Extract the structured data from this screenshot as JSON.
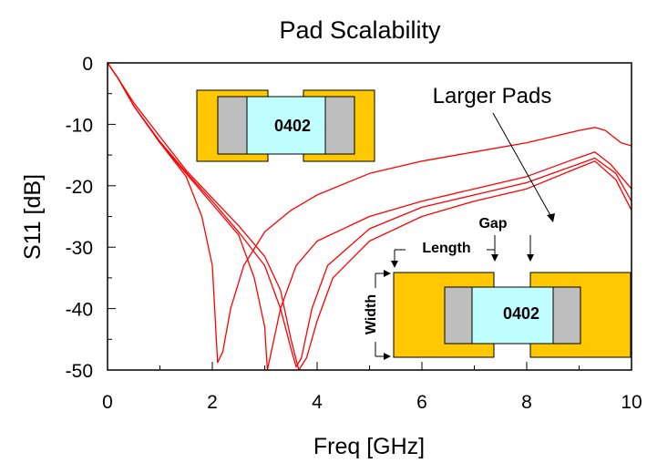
{
  "chart_data": {
    "type": "line",
    "title": "Pad Scalability",
    "xlabel": "Freq [GHz]",
    "ylabel": "S11 [dB]",
    "xlim": [
      0,
      10
    ],
    "ylim": [
      -50,
      0
    ],
    "x_ticks": [
      0,
      2,
      4,
      6,
      8,
      10
    ],
    "y_ticks": [
      0,
      -10,
      -20,
      -30,
      -40,
      -50
    ],
    "grid": false,
    "line_color": "#ff0000",
    "series": [
      {
        "values": [
          [
            0,
            0
          ],
          [
            0.2,
            -2.5
          ],
          [
            0.5,
            -7
          ],
          [
            1,
            -13
          ],
          [
            1.5,
            -18.5
          ],
          [
            1.8,
            -25
          ],
          [
            2,
            -33
          ],
          [
            2.1,
            -48.8
          ],
          [
            2.2,
            -47
          ],
          [
            2.35,
            -40
          ],
          [
            2.6,
            -33
          ],
          [
            3,
            -27.5
          ],
          [
            3.5,
            -24
          ],
          [
            4,
            -21.5
          ],
          [
            5,
            -18
          ],
          [
            6,
            -16
          ],
          [
            7,
            -14.5
          ],
          [
            8,
            -13
          ],
          [
            8.5,
            -12
          ],
          [
            9,
            -11
          ],
          [
            9.3,
            -10.5
          ],
          [
            9.5,
            -11
          ],
          [
            9.8,
            -13
          ],
          [
            10,
            -13.5
          ]
        ]
      },
      {
        "values": [
          [
            0,
            0
          ],
          [
            0.2,
            -2.5
          ],
          [
            0.5,
            -7
          ],
          [
            1,
            -13
          ],
          [
            1.5,
            -18
          ],
          [
            2,
            -23
          ],
          [
            2.5,
            -28
          ],
          [
            2.8,
            -35
          ],
          [
            3,
            -43
          ],
          [
            3.05,
            -50
          ],
          [
            3.1,
            -48
          ],
          [
            3.3,
            -40
          ],
          [
            3.6,
            -33
          ],
          [
            4,
            -29
          ],
          [
            5,
            -25
          ],
          [
            6,
            -22.5
          ],
          [
            7,
            -20.5
          ],
          [
            8,
            -18.5
          ],
          [
            8.8,
            -16
          ],
          [
            9.3,
            -14.5
          ],
          [
            9.6,
            -16.5
          ],
          [
            10,
            -20.5
          ]
        ]
      },
      {
        "values": [
          [
            0,
            0
          ],
          [
            0.2,
            -2.5
          ],
          [
            0.5,
            -7
          ],
          [
            1,
            -12.8
          ],
          [
            1.5,
            -17.8
          ],
          [
            2,
            -22.5
          ],
          [
            2.5,
            -27.5
          ],
          [
            3,
            -33
          ],
          [
            3.3,
            -40
          ],
          [
            3.5,
            -46.5
          ],
          [
            3.6,
            -49.5
          ],
          [
            3.7,
            -48
          ],
          [
            3.9,
            -40
          ],
          [
            4.2,
            -33
          ],
          [
            5,
            -27
          ],
          [
            6,
            -23.5
          ],
          [
            7,
            -21.5
          ],
          [
            8,
            -19.5
          ],
          [
            9.3,
            -15.5
          ],
          [
            9.7,
            -18
          ],
          [
            10,
            -22.5
          ]
        ]
      },
      {
        "values": [
          [
            0,
            0
          ],
          [
            0.2,
            -2.5
          ],
          [
            0.5,
            -6.5
          ],
          [
            1,
            -12
          ],
          [
            1.5,
            -17.5
          ],
          [
            2,
            -22
          ],
          [
            2.5,
            -26.5
          ],
          [
            3,
            -31.5
          ],
          [
            3.3,
            -37
          ],
          [
            3.5,
            -45
          ],
          [
            3.65,
            -50
          ],
          [
            3.8,
            -48
          ],
          [
            4,
            -42
          ],
          [
            4.3,
            -35
          ],
          [
            5,
            -29
          ],
          [
            6,
            -25
          ],
          [
            7,
            -22.5
          ],
          [
            8,
            -20.5
          ],
          [
            9,
            -17
          ],
          [
            9.3,
            -16
          ],
          [
            9.7,
            -19
          ],
          [
            10,
            -24
          ]
        ]
      }
    ],
    "annotations": {
      "larger_pads": "Larger Pads",
      "gap": "Gap",
      "length": "Length",
      "width": "Width",
      "small_pad_label": "0402",
      "large_pad_label": "0402"
    }
  },
  "colors": {
    "pad": "#ffc800",
    "body": "#c0ffff",
    "terminal": "#bebebe",
    "curve": "#ff0000"
  }
}
